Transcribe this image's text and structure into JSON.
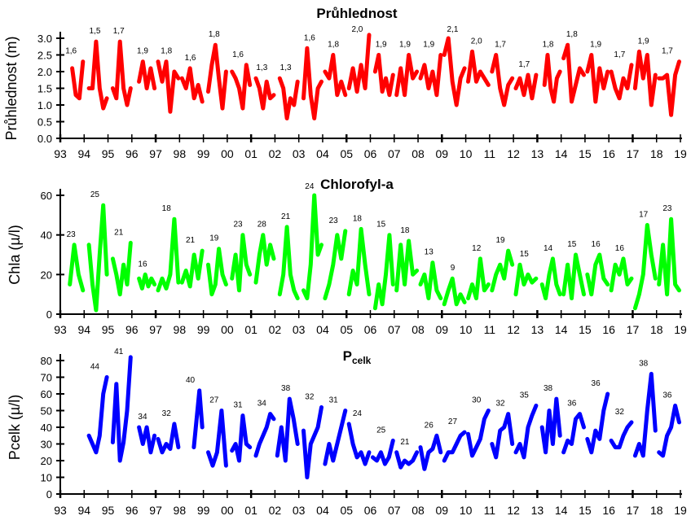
{
  "chart_data": [
    {
      "type": "line",
      "title": "Průhlednost",
      "ylabel": "Průhlednost (m)",
      "xlabel": "",
      "color": "#ff0000",
      "ylim": [
        0,
        3.0
      ],
      "yticks": [
        "0.0",
        "0.5",
        "1.0",
        "1.5",
        "2.0",
        "2.5",
        "3.0"
      ],
      "xticks": [
        "93",
        "94",
        "95",
        "96",
        "97",
        "98",
        "99",
        "00",
        "01",
        "02",
        "03",
        "04",
        "05",
        "06",
        "07",
        "08",
        "09",
        "10",
        "11",
        "12",
        "13",
        "14",
        "15",
        "16",
        "17",
        "18",
        "19"
      ],
      "annual_labels": [
        "1,6",
        "1,5",
        "1,7",
        "1,9",
        "1,8",
        "1,6",
        "1,8",
        "1,6",
        "1,3",
        "1,3",
        "1,6",
        "1,8",
        "2,0",
        "1,9",
        "1,9",
        "1,9",
        "2,1",
        "2,0",
        "1,7",
        "1,7",
        "1,8",
        "1,8",
        "1,9",
        "1,7",
        "1,9",
        "1,7"
      ],
      "annual_label_start_year": 1993,
      "series": [
        [
          1993.5,
          [
            2.1,
            1.3,
            1.2,
            2.3
          ]
        ],
        [
          1994.2,
          [
            1.5,
            1.5,
            2.9,
            1.5,
            0.9,
            1.2
          ]
        ],
        [
          1995.2,
          [
            1.5,
            1.2,
            2.9,
            1.5,
            1.0,
            1.5
          ]
        ],
        [
          1996.3,
          [
            1.7,
            2.3,
            1.5,
            2.1,
            1.5
          ]
        ],
        [
          1997.1,
          [
            2.3,
            1.7,
            2.3,
            0.8,
            2.0,
            1.8
          ]
        ],
        [
          1998.1,
          [
            1.8,
            1.5,
            2.1,
            1.2,
            1.6,
            1.1
          ]
        ],
        [
          1999.2,
          [
            1.4,
            2.2,
            2.8,
            1.8,
            0.9,
            2.0
          ]
        ],
        [
          2000.2,
          [
            2.0,
            1.8,
            1.5,
            0.9,
            2.2,
            1.6
          ]
        ],
        [
          2001.2,
          [
            1.8,
            1.5,
            0.9,
            1.7,
            1.2,
            1.3
          ]
        ],
        [
          2002.2,
          [
            1.8,
            1.5,
            0.6,
            1.2,
            1.0,
            1.7
          ]
        ],
        [
          2003.2,
          [
            1.2,
            2.7,
            1.3,
            0.6,
            1.5,
            1.7
          ]
        ],
        [
          2004.1,
          [
            2.0,
            1.8,
            2.5,
            1.3,
            1.7,
            1.3
          ]
        ],
        [
          2005.1,
          [
            1.5,
            2.1,
            1.4,
            2.2,
            1.5,
            3.1
          ]
        ],
        [
          2006.2,
          [
            2.0,
            2.5,
            1.4,
            1.8,
            1.3,
            1.9
          ]
        ],
        [
          2007.1,
          [
            1.3,
            2.1,
            1.3,
            2.5,
            1.8,
            2.0
          ]
        ],
        [
          2008.1,
          [
            1.8,
            2.2,
            1.5,
            2.0,
            1.3,
            2.5
          ]
        ],
        [
          2009.1,
          [
            2.5,
            3.0,
            1.7,
            1.0,
            1.8,
            2.1
          ]
        ],
        [
          2010.1,
          [
            1.7,
            2.6,
            1.7,
            2.0,
            1.8,
            1.6
          ]
        ],
        [
          2011.1,
          [
            2.0,
            2.5,
            1.5,
            1.0,
            1.6,
            1.8
          ]
        ],
        [
          2012.1,
          [
            1.5,
            1.8,
            1.3,
            1.9,
            1.2,
            1.9
          ]
        ],
        [
          2013.3,
          [
            1.6,
            2.5,
            1.5,
            1.1,
            1.8,
            2.0
          ]
        ],
        [
          2014.1,
          [
            2.4,
            2.8,
            1.1,
            1.6,
            2.1,
            1.9
          ]
        ],
        [
          2015.1,
          [
            2.0,
            2.5,
            1.1,
            2.1,
            1.5,
            2.0
          ]
        ],
        [
          2016.1,
          [
            2.0,
            1.5,
            1.2,
            1.8,
            1.5,
            2.2
          ]
        ],
        [
          2017.1,
          [
            1.5,
            2.6,
            1.8,
            2.5,
            1.0,
            1.9
          ]
        ],
        [
          2018.1,
          [
            1.8,
            1.8,
            1.9,
            0.7,
            1.9,
            2.3
          ]
        ]
      ]
    },
    {
      "type": "line",
      "title": "Chlorofyl-a",
      "ylabel": "Chla (µ/l)",
      "xlabel": "",
      "color": "#00ff00",
      "ylim": [
        0,
        60
      ],
      "yticks": [
        "0",
        "20",
        "40",
        "60"
      ],
      "xticks": [
        "93",
        "94",
        "95",
        "96",
        "97",
        "98",
        "99",
        "00",
        "01",
        "02",
        "03",
        "04",
        "05",
        "06",
        "07",
        "08",
        "09",
        "10",
        "11",
        "12",
        "13",
        "14",
        "15",
        "16",
        "17",
        "18",
        "19"
      ],
      "annual_labels": [
        "23",
        "25",
        "21",
        "16",
        "18",
        "21",
        "19",
        "23",
        "28",
        "21",
        "24",
        "23",
        "18",
        "15",
        "18",
        "13",
        "9",
        "12",
        "19",
        "15",
        "14",
        "15",
        "16",
        "16",
        "17",
        "23"
      ],
      "annual_label_start_year": 1993,
      "series": [
        [
          1993.4,
          [
            15,
            35,
            20,
            12
          ]
        ],
        [
          1994.2,
          [
            35,
            15,
            2,
            30,
            55,
            20
          ]
        ],
        [
          1995.2,
          [
            28,
            20,
            10,
            25,
            15,
            36
          ]
        ],
        [
          1996.3,
          [
            18,
            13,
            20,
            14,
            18,
            15
          ]
        ],
        [
          1997.1,
          [
            12,
            18,
            13,
            20,
            48,
            16
          ]
        ],
        [
          1998.1,
          [
            16,
            22,
            14,
            30,
            18,
            32
          ]
        ],
        [
          1999.2,
          [
            25,
            10,
            15,
            33,
            20,
            15
          ]
        ],
        [
          2000.2,
          [
            18,
            30,
            12,
            40,
            25,
            20
          ]
        ],
        [
          2001.2,
          [
            16,
            30,
            40,
            25,
            35,
            28
          ]
        ],
        [
          2002.2,
          [
            10,
            20,
            44,
            20,
            12,
            8
          ]
        ],
        [
          2003.2,
          [
            12,
            8,
            25,
            60,
            30,
            35
          ]
        ],
        [
          2004.1,
          [
            8,
            15,
            25,
            40,
            28,
            42
          ]
        ],
        [
          2005.1,
          [
            10,
            22,
            15,
            43,
            25,
            10
          ]
        ],
        [
          2006.2,
          [
            3,
            15,
            5,
            20,
            40,
            15
          ]
        ],
        [
          2007.1,
          [
            12,
            35,
            15,
            37,
            20,
            22
          ]
        ],
        [
          2008.1,
          [
            15,
            20,
            8,
            26,
            12,
            8
          ]
        ],
        [
          2009.1,
          [
            5,
            12,
            18,
            5,
            10,
            6
          ]
        ],
        [
          2010.1,
          [
            8,
            15,
            8,
            28,
            12,
            15
          ]
        ],
        [
          2011.1,
          [
            12,
            20,
            25,
            18,
            32,
            25
          ]
        ],
        [
          2012.1,
          [
            10,
            25,
            15,
            20,
            16,
            18
          ]
        ],
        [
          2013.2,
          [
            15,
            8,
            20,
            28,
            15,
            10
          ]
        ],
        [
          2014.1,
          [
            10,
            25,
            8,
            30,
            20,
            10
          ]
        ],
        [
          2015.1,
          [
            20,
            10,
            25,
            30,
            18,
            15
          ]
        ],
        [
          2016.1,
          [
            12,
            25,
            20,
            28,
            15,
            18
          ]
        ],
        [
          2017.1,
          [
            3,
            10,
            20,
            45,
            30,
            18
          ]
        ],
        [
          2018.1,
          [
            15,
            35,
            10,
            48,
            15,
            12
          ]
        ]
      ]
    },
    {
      "type": "line",
      "title": "P",
      "title_sub": "celk",
      "ylabel": "Pcelk (µ/l)",
      "xlabel": "",
      "color": "#0000ff",
      "ylim": [
        0,
        80
      ],
      "yticks": [
        "0",
        "10",
        "20",
        "30",
        "40",
        "50",
        "60",
        "70",
        "80"
      ],
      "xticks": [
        "93",
        "94",
        "95",
        "96",
        "97",
        "98",
        "99",
        "00",
        "01",
        "02",
        "03",
        "04",
        "05",
        "06",
        "07",
        "08",
        "09",
        "10",
        "11",
        "12",
        "13",
        "14",
        "15",
        "16",
        "17",
        "18",
        "19"
      ],
      "annual_labels": [
        "44",
        "41",
        "34",
        "32",
        "40",
        "27",
        "31",
        "34",
        "38",
        "32",
        "31",
        "24",
        "25",
        "21",
        "26",
        "27",
        "30",
        "32",
        "35",
        "38",
        "36",
        "36",
        "32",
        "38",
        "36"
      ],
      "annual_label_start_year": 1994,
      "series": [
        [
          1994.2,
          [
            35,
            30,
            25,
            35,
            60,
            70
          ]
        ],
        [
          1995.2,
          [
            31,
            66,
            20,
            31,
            50,
            82
          ]
        ],
        [
          1996.3,
          [
            40,
            30,
            40,
            25,
            35
          ]
        ],
        [
          1997.1,
          [
            33,
            25,
            30,
            27,
            42,
            28
          ]
        ],
        [
          1998.6,
          [
            28,
            45,
            62,
            40
          ]
        ],
        [
          1999.2,
          [
            25,
            17,
            25,
            50,
            17
          ]
        ],
        [
          2000.2,
          [
            26,
            30,
            20,
            47,
            30,
            28
          ]
        ],
        [
          2001.2,
          [
            23,
            30,
            35,
            40,
            48,
            45
          ]
        ],
        [
          2002.1,
          [
            23,
            40,
            20,
            57,
            45,
            30
          ]
        ],
        [
          2003.2,
          [
            38,
            10,
            30,
            35,
            40,
            52
          ]
        ],
        [
          2004.1,
          [
            18,
            30,
            20,
            30,
            40,
            50
          ]
        ],
        [
          2005.1,
          [
            42,
            30,
            22,
            25,
            18,
            25
          ]
        ],
        [
          2006.1,
          [
            22,
            20,
            25,
            18,
            22,
            32
          ]
        ],
        [
          2007.1,
          [
            25,
            16,
            20,
            18,
            20,
            25
          ]
        ],
        [
          2008.1,
          [
            28,
            15,
            25,
            27,
            35,
            25
          ]
        ],
        [
          2009.1,
          [
            20,
            25,
            25,
            30,
            35,
            37
          ]
        ],
        [
          2010.1,
          [
            36,
            23,
            28,
            33,
            45,
            50
          ]
        ],
        [
          2011.1,
          [
            30,
            22,
            38,
            40,
            48,
            30
          ]
        ],
        [
          2012.1,
          [
            25,
            30,
            22,
            40,
            47,
            53
          ]
        ],
        [
          2013.2,
          [
            40,
            25,
            50,
            30,
            57,
            35
          ]
        ],
        [
          2014.1,
          [
            25,
            32,
            30,
            45,
            48,
            40
          ]
        ],
        [
          2015.1,
          [
            33,
            25,
            38,
            33,
            50,
            60
          ]
        ],
        [
          2016.1,
          [
            32,
            28,
            28,
            35,
            40,
            43
          ]
        ],
        [
          2017.1,
          [
            23,
            30,
            23,
            50,
            72,
            38
          ]
        ],
        [
          2018.1,
          [
            25,
            23,
            35,
            40,
            53,
            43
          ]
        ]
      ]
    }
  ]
}
